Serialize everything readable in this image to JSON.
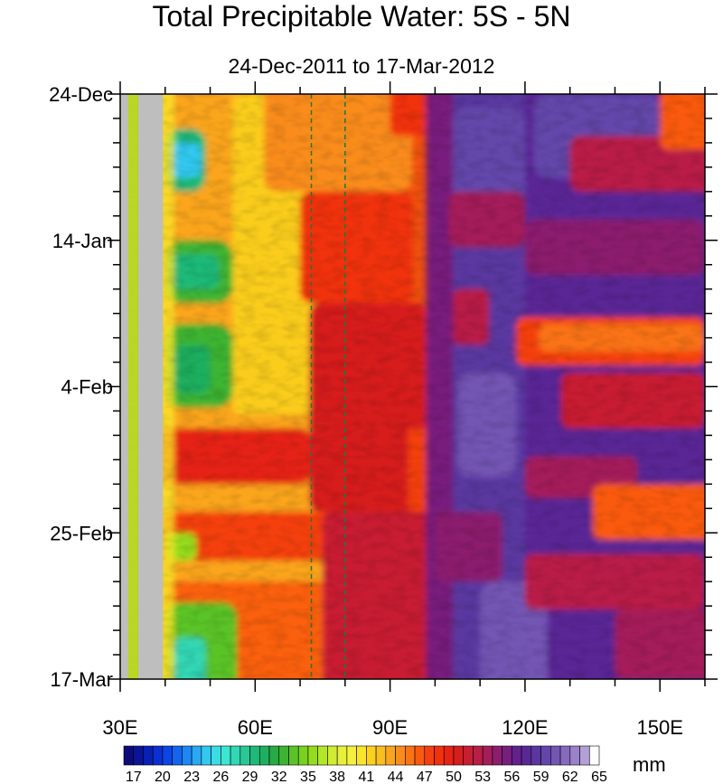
{
  "chart_data": {
    "type": "heatmap",
    "title": "Total Precipitable Water: 5S - 5N",
    "subtitle": "24-Dec-2011 to 17-Mar-2012",
    "x_range": [
      30,
      160
    ],
    "x_ticks": [
      {
        "value": 30,
        "label": "30E"
      },
      {
        "value": 60,
        "label": "60E"
      },
      {
        "value": 90,
        "label": "90E"
      },
      {
        "value": 120,
        "label": "120E"
      },
      {
        "value": 150,
        "label": "150E"
      }
    ],
    "y_range": [
      "2011-12-24",
      "2012-03-17"
    ],
    "y_ticks": [
      {
        "value": "2011-12-24",
        "label": "24-Dec"
      },
      {
        "value": "2012-01-14",
        "label": "14-Jan"
      },
      {
        "value": "2012-02-04",
        "label": "4-Feb"
      },
      {
        "value": "2012-02-25",
        "label": "25-Feb"
      },
      {
        "value": "2012-03-17",
        "label": "17-Mar"
      }
    ],
    "reference_lines_x": [
      72.5,
      80
    ],
    "missing_data_color": "#bebebe",
    "colorbar": {
      "units": "mm",
      "labels": [
        "17",
        "20",
        "23",
        "26",
        "29",
        "32",
        "35",
        "38",
        "41",
        "44",
        "47",
        "50",
        "53",
        "56",
        "59",
        "62",
        "65"
      ],
      "levels": [
        17,
        18,
        19,
        20,
        21,
        22,
        23,
        24,
        25,
        26,
        27,
        28,
        29,
        30,
        31,
        32,
        33,
        34,
        35,
        36,
        37,
        38,
        39,
        40,
        41,
        42,
        43,
        44,
        45,
        46,
        47,
        48,
        49,
        50,
        51,
        52,
        53,
        54,
        55,
        56,
        57,
        58,
        59,
        60,
        61,
        62,
        63,
        64,
        65
      ],
      "colors": [
        "#0c0c78",
        "#0a1496",
        "#0820b4",
        "#0a30d2",
        "#0a46e6",
        "#1464f0",
        "#1e86f5",
        "#28a8f5",
        "#32c8f0",
        "#3cdce6",
        "#3ce6d2",
        "#32d7b4",
        "#28c896",
        "#1eb978",
        "#1eaf5f",
        "#28aa46",
        "#3cb432",
        "#5ac328",
        "#78d21e",
        "#96dc1e",
        "#b4e628",
        "#d2ec32",
        "#e6f03c",
        "#f5f03c",
        "#fae628",
        "#fad21e",
        "#fabe1e",
        "#faa51e",
        "#fa8c1e",
        "#fa7314",
        "#fa5a0f",
        "#f5410f",
        "#f0320f",
        "#e62314",
        "#d71e1e",
        "#c81e32",
        "#b91e46",
        "#a51e5a",
        "#8c1e6e",
        "#781e7d",
        "#64218c",
        "#5a2896",
        "#5a37a0",
        "#6446aa",
        "#7355b4",
        "#8769be",
        "#9b82c8",
        "#b4a0d7",
        "#ffffff"
      ]
    }
  }
}
